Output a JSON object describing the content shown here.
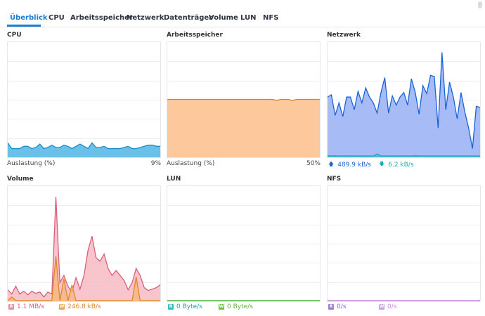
{
  "tabs": [
    {
      "label": "Überblick",
      "active": true
    },
    {
      "label": "CPU"
    },
    {
      "label": "Arbeitsspeicher"
    },
    {
      "label": "Netzwerk"
    },
    {
      "label": "Datenträger"
    },
    {
      "label": "Volume"
    },
    {
      "label": "LUN"
    },
    {
      "label": "NFS"
    }
  ],
  "panels": {
    "cpu": {
      "title": "CPU",
      "footer_label": "Auslastung  (%)",
      "footer_value": "9%"
    },
    "memory": {
      "title": "Arbeitsspeicher",
      "footer_label": "Auslastung  (%)",
      "footer_value": "50%"
    },
    "network": {
      "title": "Netzwerk",
      "up_value": "489.9 kB/s",
      "down_value": "6.2 kB/s"
    },
    "volume": {
      "title": "Volume",
      "read_badge": "R",
      "read_value": "1.1 MB/s",
      "write_badge": "W",
      "write_value": "246.8 kB/s"
    },
    "lun": {
      "title": "LUN",
      "read_badge": "R",
      "read_value": "0 Byte/s",
      "write_badge": "W",
      "write_value": "0 Byte/s"
    },
    "nfs": {
      "title": "NFS",
      "read_badge": "R",
      "read_value": "0/s",
      "write_badge": "W",
      "write_value": "0/s"
    }
  },
  "colors": {
    "accent": "#1a7fd4",
    "cpu_line": "#1d8cc9",
    "cpu_fill": "#69c1ea",
    "mem_line": "#d9831f",
    "mem_fill": "#fdc89b",
    "net_line": "#1a63d6",
    "net_fill": "#9db4f5",
    "net_down": "#13b0b8",
    "vol_read_line": "#d95f7d",
    "vol_read_fill": "#f6b6bf",
    "vol_write_line": "#e0872a",
    "vol_write_fill": "#f6b67a",
    "lun_read": "#15a6a6",
    "lun_write": "#5fb336",
    "nfs_read": "#8a67c9",
    "nfs_write": "#c690d8"
  },
  "chart_data": [
    {
      "type": "area",
      "name": "CPU",
      "ylim": [
        0,
        100
      ],
      "series": [
        {
          "name": "Auslastung",
          "values": [
            12,
            7,
            7,
            7,
            9,
            9,
            7,
            8,
            11,
            7,
            8,
            10,
            8,
            8,
            10,
            9,
            7,
            9,
            11,
            9,
            7,
            12,
            8,
            8,
            9,
            7,
            7,
            7,
            7,
            8,
            9,
            7,
            7,
            8,
            9,
            10,
            10,
            9,
            9
          ]
        }
      ]
    },
    {
      "type": "area",
      "name": "Arbeitsspeicher",
      "ylim": [
        0,
        100
      ],
      "series": [
        {
          "name": "Auslastung",
          "values": [
            50,
            50,
            50,
            50,
            50,
            50,
            50,
            50,
            50,
            50,
            50,
            50,
            50,
            50,
            50,
            50,
            50,
            50,
            50,
            50,
            50,
            50,
            50,
            50,
            50,
            50,
            50,
            50,
            49,
            50,
            50,
            50,
            49,
            50,
            50,
            50,
            50,
            50,
            50,
            50
          ]
        }
      ]
    },
    {
      "type": "area",
      "name": "Netzwerk",
      "ylim": [
        0,
        1000
      ],
      "series": [
        {
          "name": "up",
          "values": [
            520,
            540,
            360,
            470,
            350,
            520,
            520,
            410,
            570,
            470,
            600,
            520,
            470,
            380,
            560,
            690,
            380,
            530,
            450,
            520,
            560,
            450,
            680,
            560,
            370,
            620,
            550,
            710,
            700,
            250,
            910,
            410,
            650,
            520,
            330,
            560,
            390,
            250,
            70,
            440,
            430
          ]
        },
        {
          "name": "down",
          "values": [
            8,
            6,
            8,
            6,
            6,
            6,
            7,
            6,
            6,
            6,
            6,
            6,
            6,
            22,
            6,
            6,
            6,
            6,
            6,
            6,
            6,
            6,
            6,
            8,
            6,
            6,
            6,
            6,
            6,
            6,
            6,
            6,
            6,
            6,
            6,
            6,
            6,
            6,
            6,
            6,
            6
          ]
        }
      ]
    },
    {
      "type": "area",
      "name": "Volume",
      "ylim": [
        0,
        1600
      ],
      "series": [
        {
          "name": "read",
          "values": [
            150,
            90,
            200,
            90,
            130,
            80,
            130,
            100,
            120,
            50,
            120,
            90,
            1450,
            250,
            350,
            200,
            120,
            320,
            160,
            350,
            700,
            900,
            600,
            550,
            650,
            450,
            350,
            420,
            350,
            280,
            150,
            250,
            450,
            350,
            180,
            140,
            160,
            180,
            220
          ]
        },
        {
          "name": "write",
          "values": [
            0,
            50,
            0,
            0,
            0,
            0,
            0,
            0,
            0,
            0,
            0,
            0,
            620,
            0,
            300,
            0,
            220,
            0,
            0,
            0,
            0,
            0,
            0,
            0,
            0,
            0,
            0,
            0,
            0,
            0,
            0,
            0,
            330,
            0,
            0,
            0,
            0,
            0,
            0
          ]
        }
      ]
    },
    {
      "type": "area",
      "name": "LUN",
      "ylim": [
        0,
        100
      ],
      "series": [
        {
          "name": "read",
          "values": [
            0,
            0
          ]
        },
        {
          "name": "write",
          "values": [
            0,
            0
          ]
        }
      ]
    },
    {
      "type": "area",
      "name": "NFS",
      "ylim": [
        0,
        100
      ],
      "series": [
        {
          "name": "read",
          "values": [
            0,
            0
          ]
        },
        {
          "name": "write",
          "values": [
            0,
            0
          ]
        }
      ]
    }
  ]
}
